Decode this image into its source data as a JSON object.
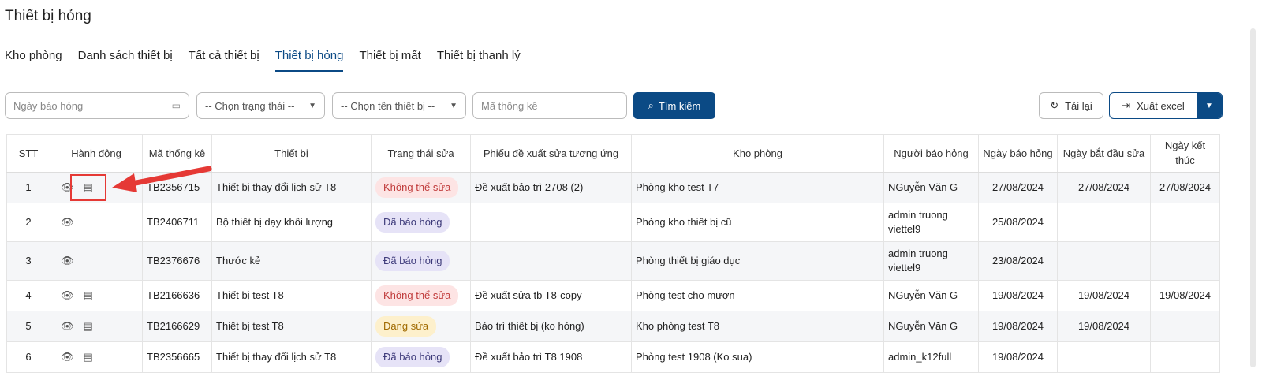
{
  "page_title": "Thiết bị hỏng",
  "tabs": [
    "Kho phòng",
    "Danh sách thiết bị",
    "Tất cả thiết bị",
    "Thiết bị hỏng",
    "Thiết bị mất",
    "Thiết bị thanh lý"
  ],
  "active_tab": "Thiết bị hỏng",
  "filters": {
    "date_placeholder": "Ngày báo hỏng",
    "status_select": "-- Chọn trạng thái --",
    "device_select": "-- Chọn tên thiết bị --",
    "code_placeholder": "Mã thống kê",
    "search_label": "Tìm kiếm"
  },
  "toolbar": {
    "reload_label": "Tải lại",
    "export_label": "Xuất excel"
  },
  "table": {
    "headers": [
      "STT",
      "Hành động",
      "Mã thống kê",
      "Thiết bị",
      "Trạng thái sửa",
      "Phiếu đề xuất sửa tương ứng",
      "Kho phòng",
      "Người báo hỏng",
      "Ngày báo hỏng",
      "Ngày bắt đầu sửa",
      "Ngày kết thúc"
    ],
    "rows": [
      {
        "stt": "1",
        "code": "TB2356715",
        "device": "Thiết bị thay đổi lịch sử T8",
        "status": "Không thể sửa",
        "proposal": "Đề xuất bảo trì 2708 (2)",
        "room": "Phòng kho test T7",
        "reporter": "NGuyễn Văn G",
        "reported": "27/08/2024",
        "start": "27/08/2024",
        "end": "27/08/2024"
      },
      {
        "stt": "2",
        "code": "TB2406711",
        "device": "Bộ thiết bị dạy khối lượng",
        "status": "Đã báo hỏng",
        "proposal": "",
        "room": "Phòng kho thiết bị cũ",
        "reporter": "admin truong viettel9",
        "reported": "25/08/2024",
        "start": "",
        "end": ""
      },
      {
        "stt": "3",
        "code": "TB2376676",
        "device": "Thước kẻ",
        "status": "Đã báo hỏng",
        "proposal": "",
        "room": "Phòng thiết bị giáo dục",
        "reporter": "admin truong viettel9",
        "reported": "23/08/2024",
        "start": "",
        "end": ""
      },
      {
        "stt": "4",
        "code": "TB2166636",
        "device": "Thiết bị test T8",
        "status": "Không thể sửa",
        "proposal": "Đề xuất sửa tb T8-copy",
        "room": "Phòng test cho mượn",
        "reporter": "NGuyễn Văn G",
        "reported": "19/08/2024",
        "start": "19/08/2024",
        "end": "19/08/2024"
      },
      {
        "stt": "5",
        "code": "TB2166629",
        "device": "Thiết bị test T8",
        "status": "Đang sửa",
        "proposal": "Bảo trì thiết bị (ko hỏng)",
        "room": "Kho phòng test T8",
        "reporter": "NGuyễn Văn G",
        "reported": "19/08/2024",
        "start": "19/08/2024",
        "end": ""
      },
      {
        "stt": "6",
        "code": "TB2356665",
        "device": "Thiết bị thay đổi lịch sử T8",
        "status": "Đã báo hỏng",
        "proposal": "Đề xuất bảo trì T8 1908",
        "room": "Phòng test 1908 (Ko sua)",
        "reporter": "admin_k12full",
        "reported": "19/08/2024",
        "start": "",
        "end": ""
      }
    ]
  },
  "colors": {
    "primary": "#0b4a85",
    "annotation": "#e53935"
  }
}
